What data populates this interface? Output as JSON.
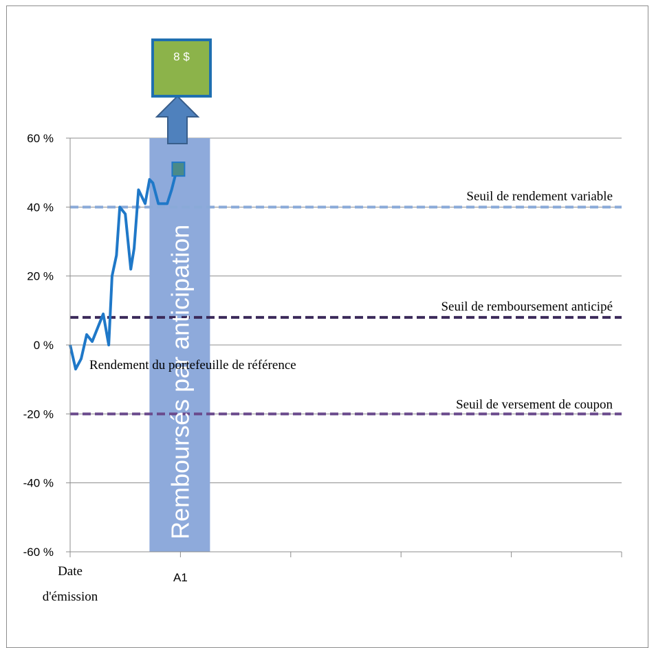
{
  "chart_data": {
    "type": "line",
    "ylim": [
      -60,
      60
    ],
    "y_ticks": [
      {
        "value": 60,
        "label": "60 %"
      },
      {
        "value": 40,
        "label": "40 %"
      },
      {
        "value": 20,
        "label": "20 %"
      },
      {
        "value": 0,
        "label": "0 %"
      },
      {
        "value": -20,
        "label": "-20 %"
      },
      {
        "value": -40,
        "label": "-40 %"
      },
      {
        "value": -60,
        "label": "-60 %"
      }
    ],
    "x_categories": [
      "Date d'émission",
      "A1",
      "",
      "",
      "",
      ""
    ],
    "x_label_lines": {
      "issue_date_line1": "Date",
      "issue_date_line2": "d'émission",
      "a1": "A1"
    },
    "grid": true,
    "series": [
      {
        "name": "Rendement du portefeuille de référence",
        "color": "#1f78c8",
        "x": [
          0,
          0.05,
          0.1,
          0.15,
          0.2,
          0.25,
          0.3,
          0.35,
          0.38,
          0.42,
          0.45,
          0.5,
          0.55,
          0.58,
          0.62,
          0.68,
          0.72,
          0.75,
          0.8,
          0.88,
          0.92,
          0.96,
          1.0
        ],
        "y": [
          0,
          -7,
          -4,
          3,
          1,
          5,
          9,
          0,
          20,
          26,
          40,
          38,
          22,
          28,
          45,
          41,
          48,
          47,
          41,
          41,
          45,
          50,
          51
        ]
      }
    ],
    "thresholds": [
      {
        "label": "Seuil de rendement variable",
        "value": 40,
        "color": "#8aaad8"
      },
      {
        "label": "Seuil de remboursement anticipé",
        "value": 8,
        "color": "#3b2a5a"
      },
      {
        "label": "Seuil de versement de coupon",
        "value": -20,
        "color": "#6a4a8c"
      }
    ],
    "band": {
      "label": "Remboursés par anticipation",
      "color": "#8eaadb"
    },
    "callout": {
      "label": "8 $",
      "fill": "#8cb34a",
      "border": "#1f6fb0"
    }
  }
}
